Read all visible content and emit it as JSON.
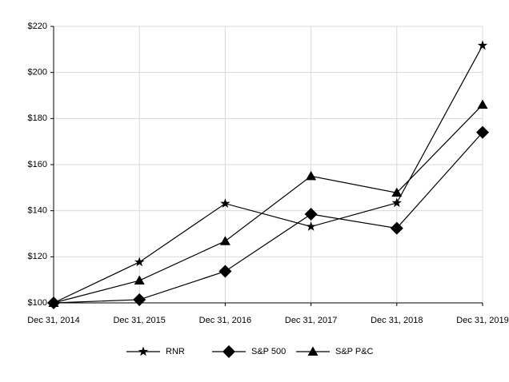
{
  "chart_data": {
    "type": "line",
    "categories": [
      "Dec 31, 2014",
      "Dec 31, 2015",
      "Dec 31, 2016",
      "Dec 31, 2017",
      "Dec 31, 2018",
      "Dec 31, 2019"
    ],
    "series": [
      {
        "name": "RNR",
        "color": "#000000",
        "marker": "star",
        "values": [
          100,
          117.7,
          143.1,
          133.1,
          143.4,
          211.7
        ]
      },
      {
        "name": "S&P 500",
        "color": "#000000",
        "marker": "diamond",
        "values": [
          100,
          101.4,
          113.7,
          138.5,
          132.4,
          174
        ]
      },
      {
        "name": "S&P P&C",
        "color": "#000000",
        "marker": "triangle",
        "values": [
          100,
          109.7,
          126.8,
          155,
          147.8,
          186
        ]
      }
    ],
    "ylim": [
      100,
      220
    ],
    "yticks": [
      {
        "value": 100,
        "label": "$100"
      },
      {
        "value": 120,
        "label": "$120"
      },
      {
        "value": 140,
        "label": "$140"
      },
      {
        "value": 160,
        "label": "$160"
      },
      {
        "value": 180,
        "label": "$180"
      },
      {
        "value": 200,
        "label": "$200"
      },
      {
        "value": 220,
        "label": "$220"
      }
    ],
    "grid": true,
    "legend": "bottom"
  }
}
